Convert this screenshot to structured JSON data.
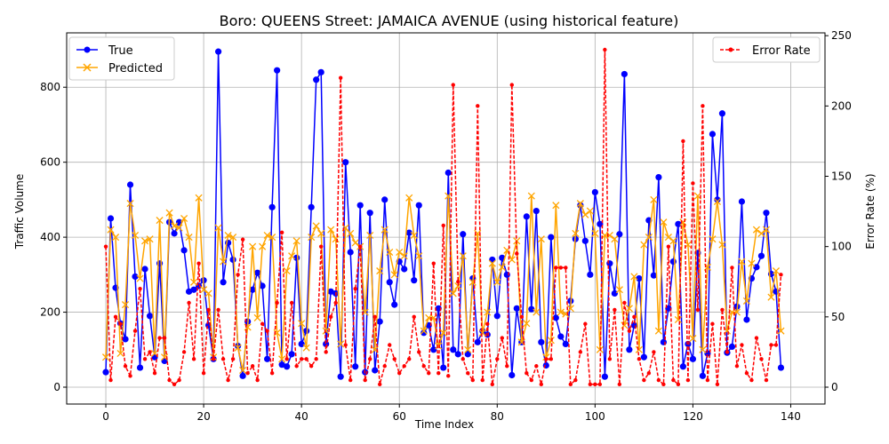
{
  "chart_data": {
    "type": "line",
    "title": "Boro: QUEENS Street: JAMAICA AVENUE (using historical feature)",
    "xlabel": "Time Index",
    "ylabel_left": "Traffic Volume",
    "ylabel_right": "Error Rate (%)",
    "xlim": [
      -8,
      147
    ],
    "ylim_left": [
      -45,
      945
    ],
    "ylim_right": [
      -12,
      252
    ],
    "xticks": [
      0,
      20,
      40,
      60,
      80,
      100,
      120,
      140
    ],
    "yticks_left": [
      0,
      200,
      400,
      600,
      800
    ],
    "yticks_right": [
      0,
      50,
      100,
      150,
      200,
      250
    ],
    "grid": true,
    "legend_left": "upper-left",
    "legend_right": "upper-right",
    "colors": {
      "true": "#0000ff",
      "predicted": "#ffa500",
      "error": "#ff0000",
      "grid": "#b0b0b0"
    },
    "series": [
      {
        "name": "True",
        "axis": "left",
        "style": "line-circle",
        "values": [
          40,
          450,
          265,
          170,
          128,
          540,
          295,
          52,
          315,
          190,
          80,
          330,
          70,
          440,
          410,
          440,
          365,
          255,
          260,
          270,
          285,
          165,
          75,
          895,
          280,
          385,
          340,
          110,
          30,
          175,
          260,
          305,
          270,
          75,
          480,
          845,
          60,
          55,
          88,
          345,
          115,
          150,
          480,
          820,
          840,
          115,
          255,
          250,
          28,
          600,
          360,
          55,
          485,
          40,
          465,
          45,
          175,
          500,
          280,
          220,
          335,
          315,
          412,
          285,
          485,
          145,
          165,
          100,
          210,
          52,
          572,
          100,
          88,
          408,
          88,
          290,
          120,
          150,
          140,
          340,
          190,
          345,
          300,
          32,
          210,
          120,
          455,
          208,
          470,
          120,
          58,
          400,
          185,
          135,
          115,
          230,
          395,
          485,
          390,
          300,
          520,
          435,
          28,
          330,
          250,
          408,
          835,
          100,
          165,
          290,
          80,
          445,
          298,
          560,
          120,
          210,
          335,
          435,
          55,
          115,
          75,
          358,
          30,
          90,
          675,
          500,
          730,
          92,
          108,
          215,
          495,
          180,
          290,
          320,
          350,
          465,
          302,
          255,
          52
        ]
      },
      {
        "name": "Predicted",
        "axis": "left",
        "style": "line-x",
        "values": [
          80,
          420,
          400,
          90,
          220,
          490,
          405,
          290,
          390,
          395,
          90,
          445,
          80,
          465,
          430,
          425,
          450,
          400,
          280,
          505,
          260,
          250,
          80,
          425,
          335,
          405,
          400,
          105,
          45,
          160,
          375,
          185,
          375,
          405,
          400,
          145,
          75,
          310,
          350,
          390,
          170,
          105,
          400,
          430,
          410,
          150,
          420,
          395,
          115,
          425,
          410,
          385,
          375,
          200,
          405,
          100,
          310,
          420,
          360,
          300,
          360,
          350,
          505,
          405,
          350,
          150,
          185,
          185,
          110,
          145,
          510,
          250,
          270,
          350,
          100,
          280,
          410,
          145,
          200,
          330,
          280,
          320,
          365,
          340,
          390,
          120,
          170,
          510,
          200,
          395,
          80,
          125,
          485,
          200,
          195,
          210,
          410,
          490,
          460,
          470,
          410,
          100,
          405,
          405,
          395,
          260,
          165,
          210,
          295,
          100,
          380,
          400,
          500,
          150,
          440,
          400,
          390,
          180,
          440,
          380,
          130,
          510,
          100,
          320,
          395,
          495,
          380,
          150,
          200,
          200,
          335,
          230,
          330,
          420,
          410,
          420,
          240,
          310,
          150
        ]
      },
      {
        "name": "Error Rate",
        "axis": "right",
        "style": "dashed-dot",
        "values": [
          100,
          5,
          50,
          45,
          15,
          8,
          40,
          70,
          20,
          25,
          10,
          35,
          35,
          5,
          2,
          5,
          25,
          60,
          20,
          88,
          10,
          55,
          20,
          55,
          20,
          5,
          20,
          80,
          105,
          10,
          15,
          5,
          45,
          40,
          10,
          60,
          110,
          20,
          60,
          15,
          20,
          20,
          15,
          20,
          100,
          25,
          50,
          60,
          220,
          30,
          5,
          70,
          100,
          5,
          20,
          50,
          2,
          15,
          30,
          20,
          10,
          15,
          20,
          50,
          25,
          15,
          10,
          88,
          10,
          115,
          8,
          215,
          75,
          20,
          10,
          5,
          200,
          5,
          45,
          2,
          20,
          35,
          15,
          215,
          95,
          50,
          10,
          5,
          15,
          2,
          20,
          20,
          85,
          85,
          85,
          2,
          5,
          25,
          45,
          2,
          2,
          2,
          240,
          20,
          55,
          2,
          60,
          40,
          50,
          20,
          5,
          10,
          25,
          5,
          2,
          100,
          5,
          2,
          175,
          5,
          145,
          55,
          200,
          5,
          45,
          2,
          55,
          25,
          85,
          15,
          30,
          10,
          5,
          35,
          20,
          5,
          30,
          30,
          80
        ]
      }
    ]
  }
}
